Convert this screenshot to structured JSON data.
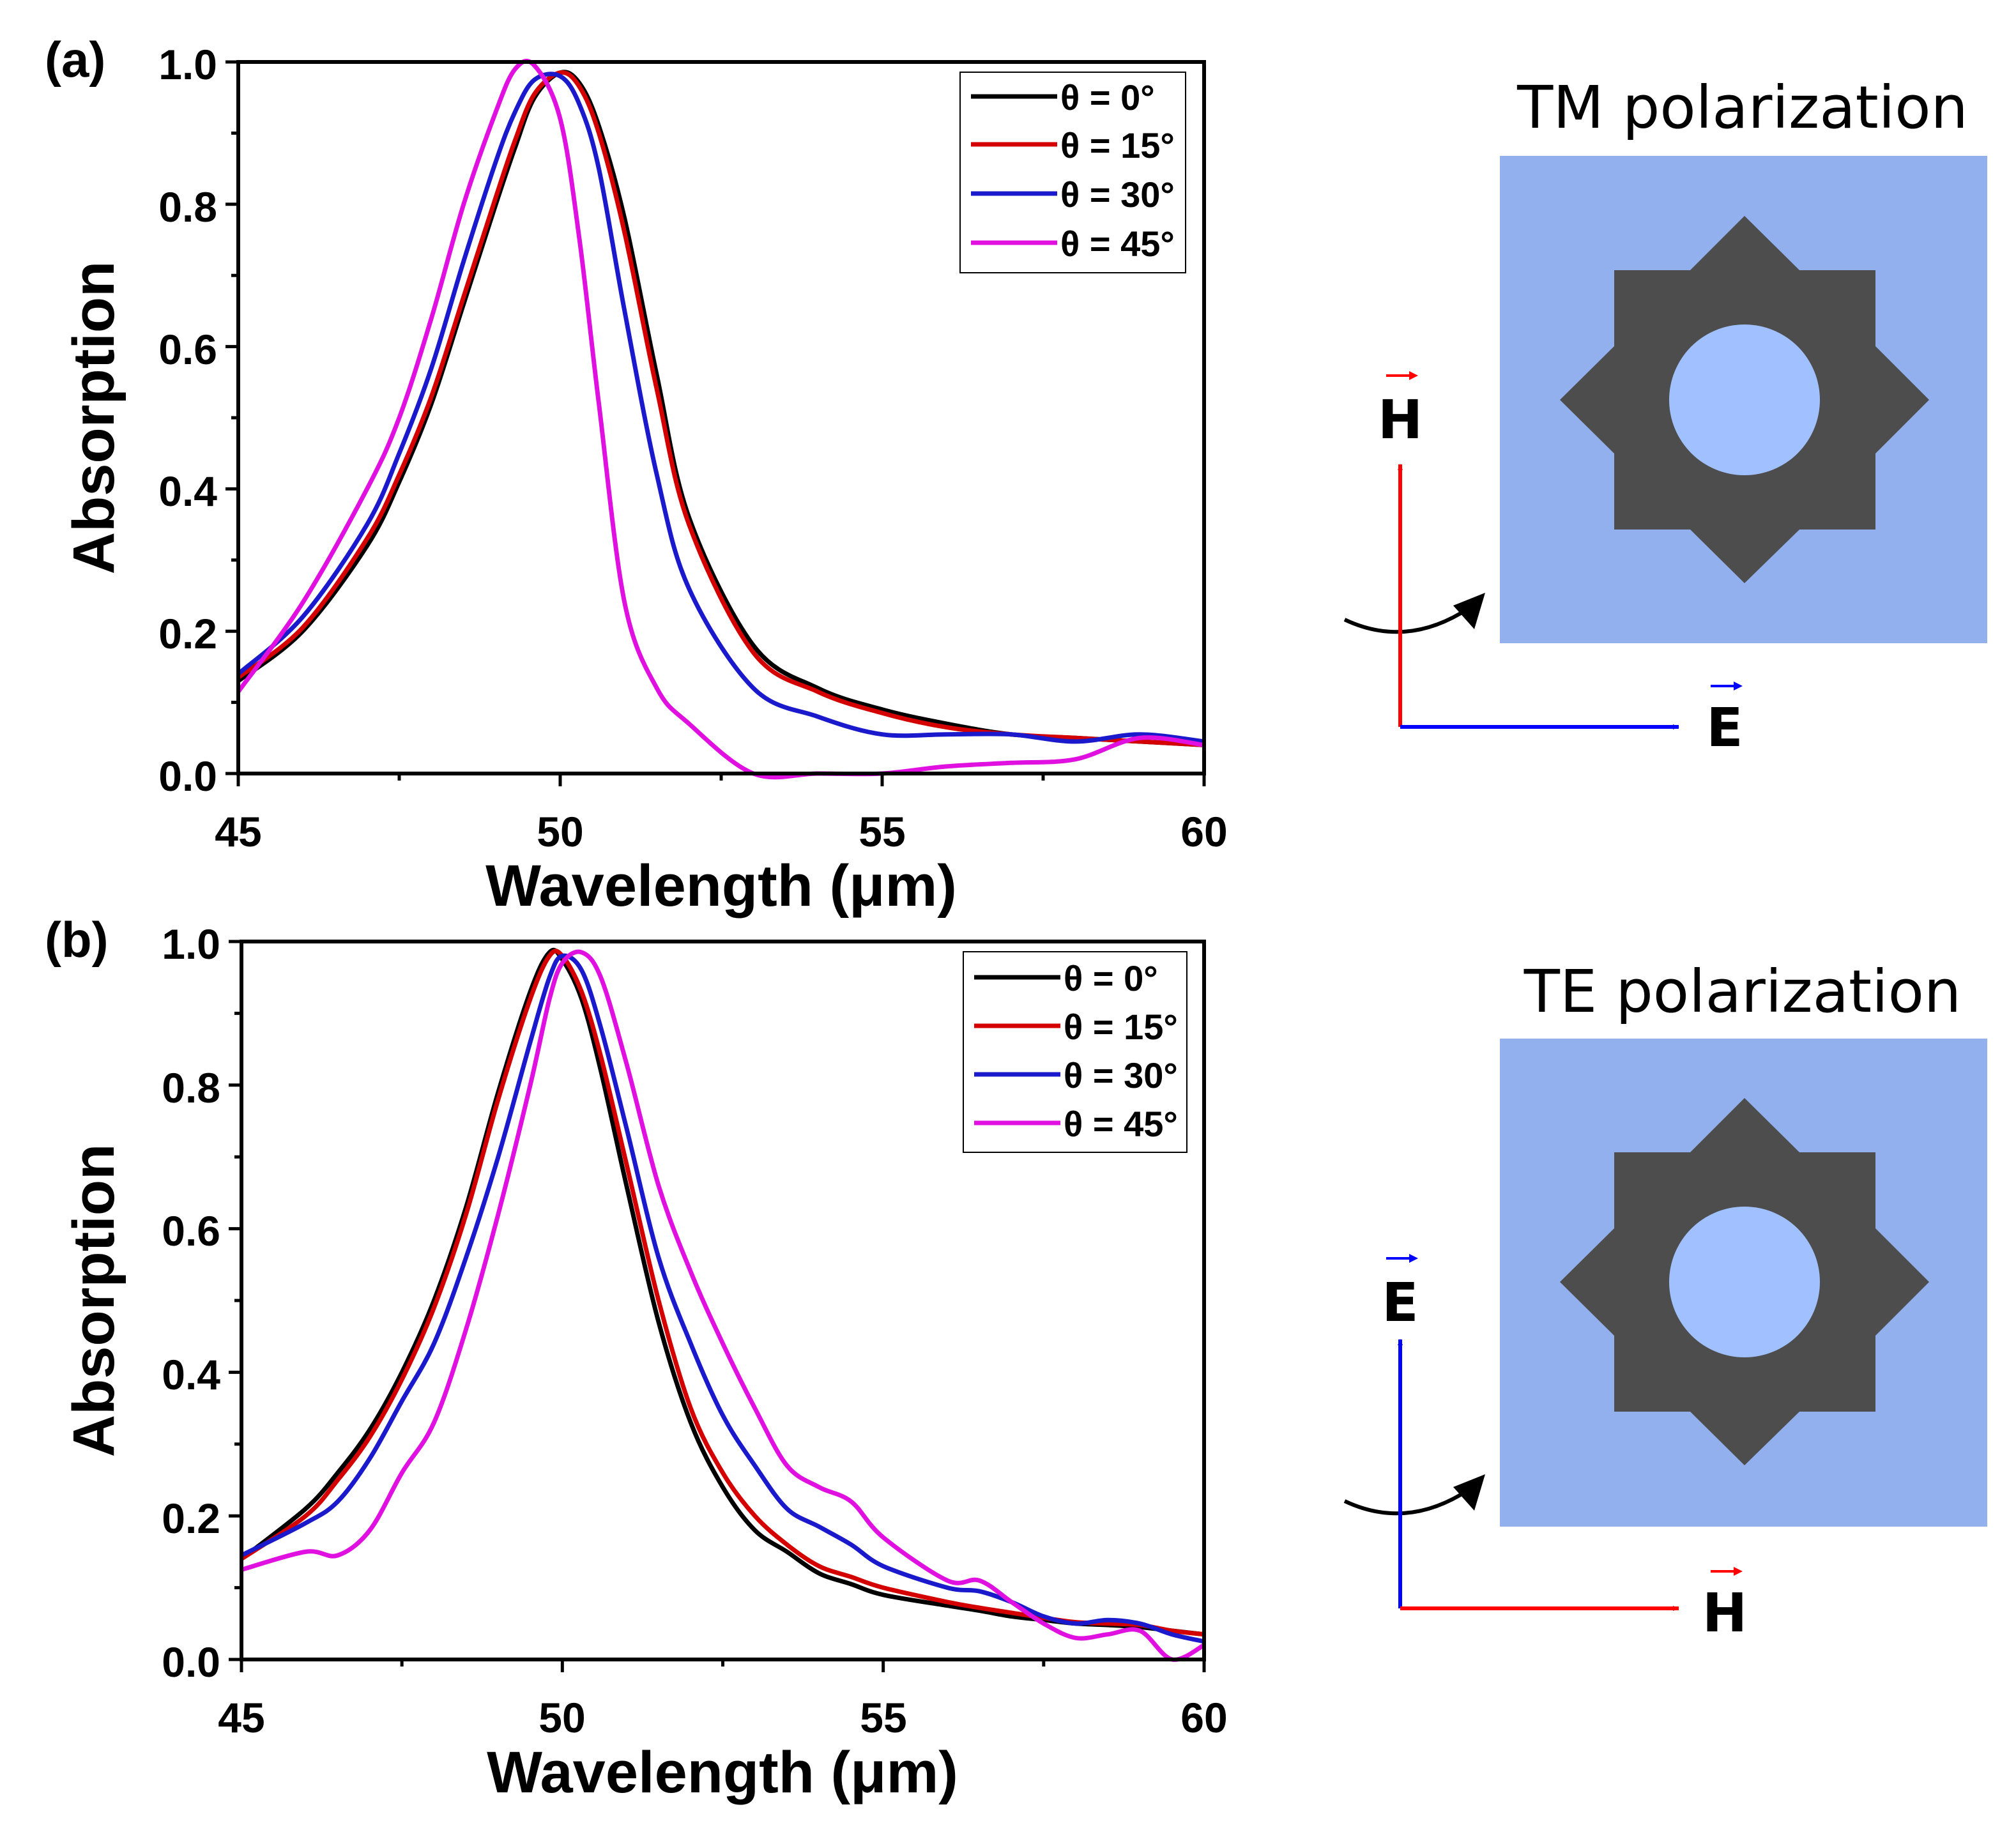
{
  "chart_data": [
    {
      "type": "line",
      "panel_label": "(a)",
      "xlabel": "Wavelength (μm)",
      "ylabel": "Absorption",
      "xlim": [
        45,
        60
      ],
      "ylim": [
        0,
        1
      ],
      "xticks": [
        "45",
        "50",
        "55",
        "60"
      ],
      "yticks": [
        "0.0",
        "0.2",
        "0.4",
        "0.6",
        "0.8",
        "1.0"
      ],
      "x": [
        45,
        46,
        47,
        47.5,
        48,
        48.5,
        49,
        49.3,
        49.6,
        50,
        50.3,
        50.6,
        51,
        51.5,
        52,
        53,
        54,
        55,
        56,
        57,
        58,
        59,
        60
      ],
      "series": [
        {
          "name": "θ = 0°",
          "color": "#000000",
          "values": [
            0.13,
            0.2,
            0.32,
            0.41,
            0.52,
            0.66,
            0.8,
            0.88,
            0.95,
            0.985,
            0.97,
            0.91,
            0.78,
            0.56,
            0.36,
            0.18,
            0.12,
            0.09,
            0.07,
            0.055,
            0.05,
            0.045,
            0.04
          ]
        },
        {
          "name": "θ = 15°",
          "color": "#d40000",
          "values": [
            0.135,
            0.205,
            0.33,
            0.42,
            0.53,
            0.67,
            0.81,
            0.89,
            0.955,
            0.985,
            0.965,
            0.9,
            0.76,
            0.54,
            0.35,
            0.17,
            0.115,
            0.085,
            0.065,
            0.055,
            0.05,
            0.045,
            0.04
          ]
        },
        {
          "name": "θ = 30°",
          "color": "#1a1acc",
          "values": [
            0.14,
            0.22,
            0.35,
            0.45,
            0.57,
            0.72,
            0.86,
            0.93,
            0.975,
            0.98,
            0.94,
            0.85,
            0.65,
            0.42,
            0.26,
            0.12,
            0.08,
            0.055,
            0.055,
            0.055,
            0.045,
            0.055,
            0.045
          ]
        },
        {
          "name": "θ = 45°",
          "color": "#e010e0",
          "values": [
            0.115,
            0.24,
            0.4,
            0.5,
            0.64,
            0.8,
            0.93,
            0.99,
            0.995,
            0.92,
            0.75,
            0.52,
            0.24,
            0.12,
            0.07,
            0.0,
            0.0,
            0.0,
            0.01,
            0.015,
            0.02,
            0.05,
            0.04
          ]
        }
      ]
    },
    {
      "type": "line",
      "panel_label": "(b)",
      "xlabel": "Wavelength (μm)",
      "ylabel": "Absorption",
      "xlim": [
        45,
        60
      ],
      "ylim": [
        0,
        1
      ],
      "xticks": [
        "45",
        "50",
        "55",
        "60"
      ],
      "yticks": [
        "0.0",
        "0.2",
        "0.4",
        "0.6",
        "0.8",
        "1.0"
      ],
      "x": [
        45,
        46,
        46.5,
        47,
        47.5,
        48,
        48.5,
        49,
        49.5,
        49.8,
        50,
        50.3,
        50.6,
        51,
        51.5,
        52,
        52.5,
        53,
        53.5,
        54,
        54.5,
        55,
        56,
        56.5,
        57,
        57.5,
        58,
        58.5,
        59,
        59.5,
        60
      ],
      "series": [
        {
          "name": "θ = 0°",
          "color": "#000000",
          "values": [
            0.14,
            0.21,
            0.26,
            0.32,
            0.4,
            0.5,
            0.63,
            0.79,
            0.93,
            0.985,
            0.975,
            0.92,
            0.82,
            0.66,
            0.47,
            0.33,
            0.24,
            0.18,
            0.15,
            0.12,
            0.105,
            0.09,
            0.075,
            0.068,
            0.06,
            0.055,
            0.05,
            0.048,
            0.045,
            0.04,
            0.035
          ]
        },
        {
          "name": "θ = 15°",
          "color": "#d40000",
          "values": [
            0.14,
            0.2,
            0.25,
            0.31,
            0.39,
            0.49,
            0.62,
            0.78,
            0.92,
            0.98,
            0.98,
            0.93,
            0.84,
            0.69,
            0.5,
            0.35,
            0.26,
            0.2,
            0.16,
            0.13,
            0.115,
            0.1,
            0.08,
            0.072,
            0.065,
            0.058,
            0.052,
            0.05,
            0.048,
            0.04,
            0.035
          ]
        },
        {
          "name": "θ = 30°",
          "color": "#1a1acc",
          "values": [
            0.145,
            0.19,
            0.22,
            0.28,
            0.36,
            0.44,
            0.56,
            0.7,
            0.86,
            0.95,
            0.98,
            0.96,
            0.88,
            0.74,
            0.56,
            0.44,
            0.34,
            0.27,
            0.21,
            0.185,
            0.16,
            0.13,
            0.1,
            0.095,
            0.08,
            0.06,
            0.05,
            0.055,
            0.05,
            0.035,
            0.025
          ]
        },
        {
          "name": "θ = 45°",
          "color": "#e010e0",
          "values": [
            0.125,
            0.15,
            0.145,
            0.18,
            0.26,
            0.33,
            0.46,
            0.62,
            0.8,
            0.92,
            0.97,
            0.985,
            0.95,
            0.83,
            0.66,
            0.54,
            0.44,
            0.35,
            0.27,
            0.24,
            0.22,
            0.17,
            0.11,
            0.11,
            0.08,
            0.05,
            0.03,
            0.035,
            0.04,
            0.0,
            0.02
          ]
        }
      ]
    }
  ],
  "schematics": [
    {
      "title": "TM polarization",
      "vertical_label": "H",
      "horizontal_label": "E",
      "vertical_color": "#ff0000",
      "horizontal_color": "#0000ff"
    },
    {
      "title": "TE polarization",
      "vertical_label": "E",
      "horizontal_label": "H",
      "vertical_color": "#0000ff",
      "horizontal_color": "#ff0000"
    }
  ],
  "colors": {
    "substrate": "#93b0ee",
    "star": "#4d4d4d",
    "hole": "#a0c0ff"
  }
}
